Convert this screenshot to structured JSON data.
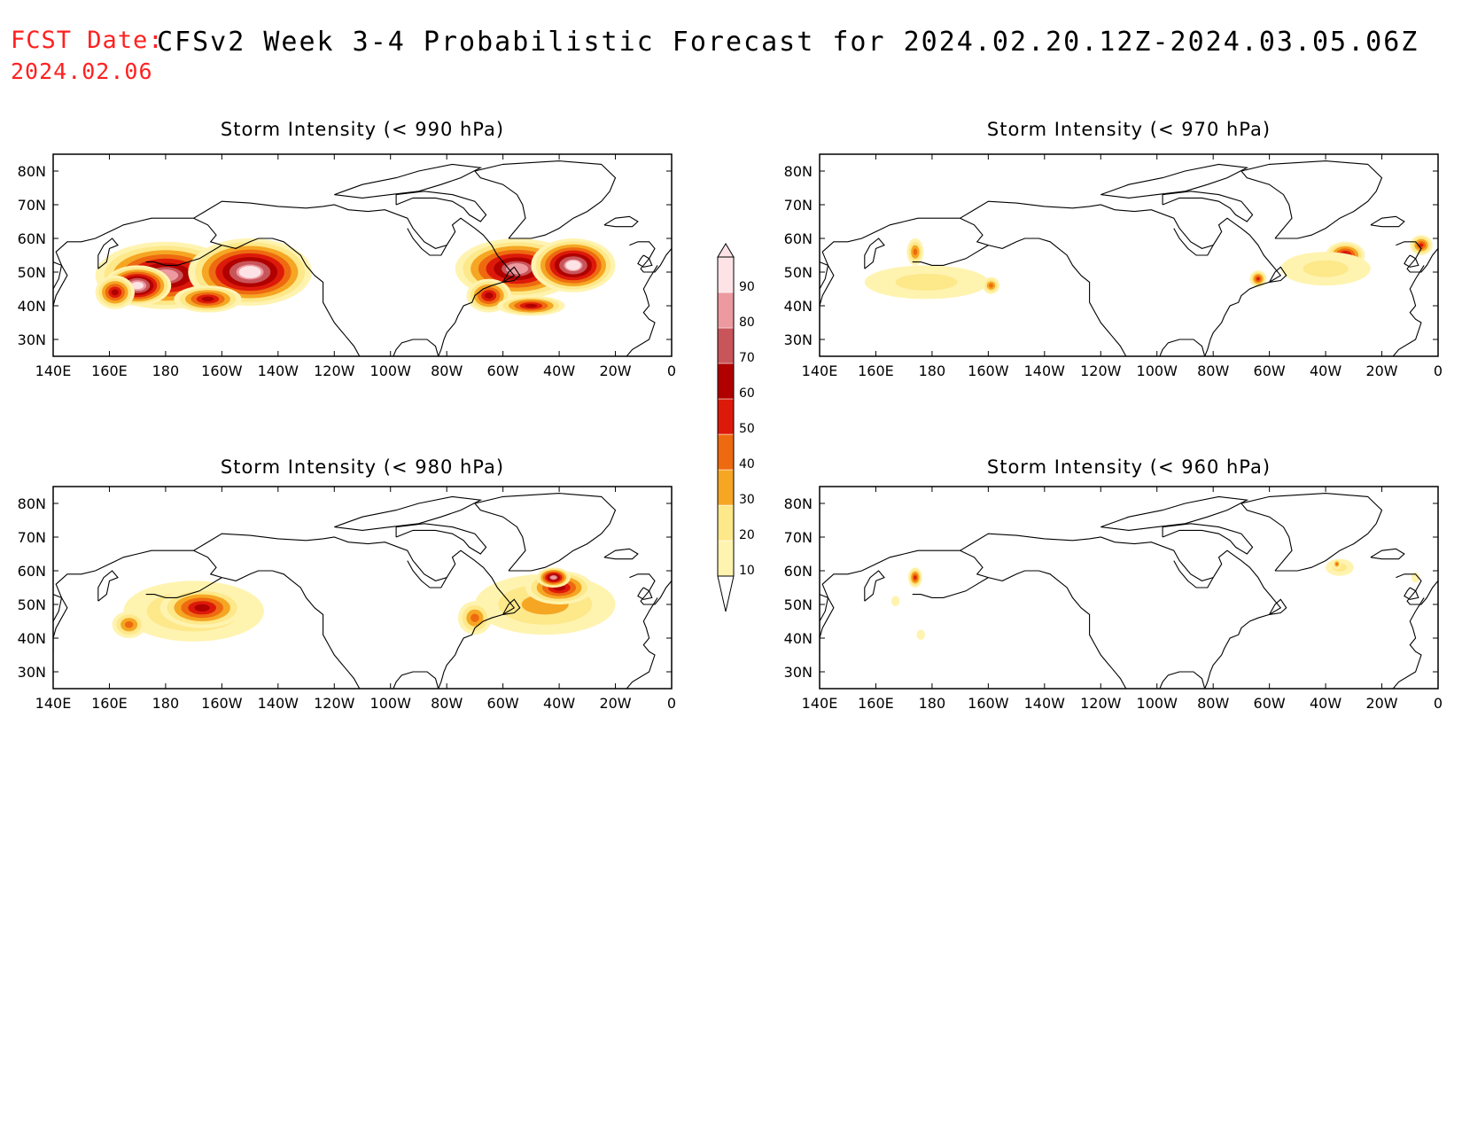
{
  "header": {
    "fcst_label": "FCST Date:",
    "fcst_date": "2024.02.06",
    "title": "CFSv2 Week 3-4 Probabilistic Forecast for 2024.02.20.12Z-2024.03.05.06Z"
  },
  "axes": {
    "lon_ticks": [
      "140E",
      "160E",
      "180",
      "160W",
      "140W",
      "120W",
      "100W",
      "80W",
      "60W",
      "40W",
      "20W",
      "0"
    ],
    "lat_ticks": [
      "80N",
      "70N",
      "60N",
      "50N",
      "40N",
      "30N"
    ],
    "lon_range": [
      140,
      360
    ],
    "lat_range": [
      25,
      85
    ]
  },
  "colorbar": {
    "levels": [
      "10",
      "20",
      "30",
      "40",
      "50",
      "60",
      "70",
      "80",
      "90"
    ],
    "colors": [
      "#fff3b0",
      "#fde88a",
      "#f5a623",
      "#ee6a10",
      "#dd1a0a",
      "#b00000",
      "#c8555a",
      "#ec9aa0",
      "#fde3e6"
    ]
  },
  "panels": [
    {
      "title": "Storm Intensity (< 990 hPa)",
      "blobs": [
        {
          "lon": 180,
          "lat": 49,
          "rlon": 25,
          "rlat": 10,
          "p": 80
        },
        {
          "lon": 210,
          "lat": 50,
          "rlon": 22,
          "rlat": 10,
          "p": 90
        },
        {
          "lon": 170,
          "lat": 46,
          "rlon": 12,
          "rlat": 6,
          "p": 95
        },
        {
          "lon": 162,
          "lat": 44,
          "rlon": 7,
          "rlat": 5,
          "p": 60
        },
        {
          "lon": 195,
          "lat": 42,
          "rlon": 12,
          "rlat": 4,
          "p": 60
        },
        {
          "lon": 305,
          "lat": 51,
          "rlon": 22,
          "rlat": 9,
          "p": 80
        },
        {
          "lon": 325,
          "lat": 52,
          "rlon": 15,
          "rlat": 8,
          "p": 90
        },
        {
          "lon": 295,
          "lat": 43,
          "rlon": 8,
          "rlat": 5,
          "p": 60
        },
        {
          "lon": 310,
          "lat": 40,
          "rlon": 12,
          "rlat": 3,
          "p": 60
        }
      ]
    },
    {
      "title": "Storm Intensity (< 970 hPa)",
      "blobs": [
        {
          "lon": 178,
          "lat": 47,
          "rlon": 22,
          "rlat": 5,
          "p": 20
        },
        {
          "lon": 174,
          "lat": 56,
          "rlon": 3,
          "rlat": 4,
          "p": 40
        },
        {
          "lon": 201,
          "lat": 46,
          "rlon": 3,
          "rlat": 2.5,
          "p": 40
        },
        {
          "lon": 327,
          "lat": 55,
          "rlon": 7,
          "rlat": 4,
          "p": 60
        },
        {
          "lon": 320,
          "lat": 51,
          "rlon": 16,
          "rlat": 5,
          "p": 20
        },
        {
          "lon": 296,
          "lat": 48,
          "rlon": 3,
          "rlat": 2.5,
          "p": 50
        },
        {
          "lon": 354,
          "lat": 58,
          "rlon": 4,
          "rlat": 3,
          "p": 50
        }
      ]
    },
    {
      "title": "Storm Intensity (< 980 hPa)",
      "blobs": [
        {
          "lon": 190,
          "lat": 48,
          "rlon": 25,
          "rlat": 9,
          "p": 30
        },
        {
          "lon": 193,
          "lat": 49,
          "rlon": 15,
          "rlat": 6,
          "p": 60
        },
        {
          "lon": 167,
          "lat": 44,
          "rlon": 6,
          "rlat": 4,
          "p": 40
        },
        {
          "lon": 315,
          "lat": 50,
          "rlon": 25,
          "rlat": 9,
          "p": 30
        },
        {
          "lon": 320,
          "lat": 55,
          "rlon": 12,
          "rlat": 5,
          "p": 60
        },
        {
          "lon": 318,
          "lat": 58,
          "rlon": 6,
          "rlat": 3,
          "p": 80
        },
        {
          "lon": 290,
          "lat": 46,
          "rlon": 6,
          "rlat": 5,
          "p": 40
        }
      ]
    },
    {
      "title": "Storm Intensity (< 960 hPa)",
      "blobs": [
        {
          "lon": 174,
          "lat": 58,
          "rlon": 2.5,
          "rlat": 3,
          "p": 50
        },
        {
          "lon": 325,
          "lat": 61,
          "rlon": 5,
          "rlat": 2.5,
          "p": 20
        },
        {
          "lon": 324,
          "lat": 62,
          "rlon": 1.5,
          "rlat": 1.5,
          "p": 40
        },
        {
          "lon": 167,
          "lat": 51,
          "rlon": 1.5,
          "rlat": 1.5,
          "p": 15
        },
        {
          "lon": 176,
          "lat": 41,
          "rlon": 1.5,
          "rlat": 1.5,
          "p": 15
        },
        {
          "lon": 352,
          "lat": 58,
          "rlon": 1.5,
          "rlat": 1.5,
          "p": 15
        }
      ]
    }
  ]
}
